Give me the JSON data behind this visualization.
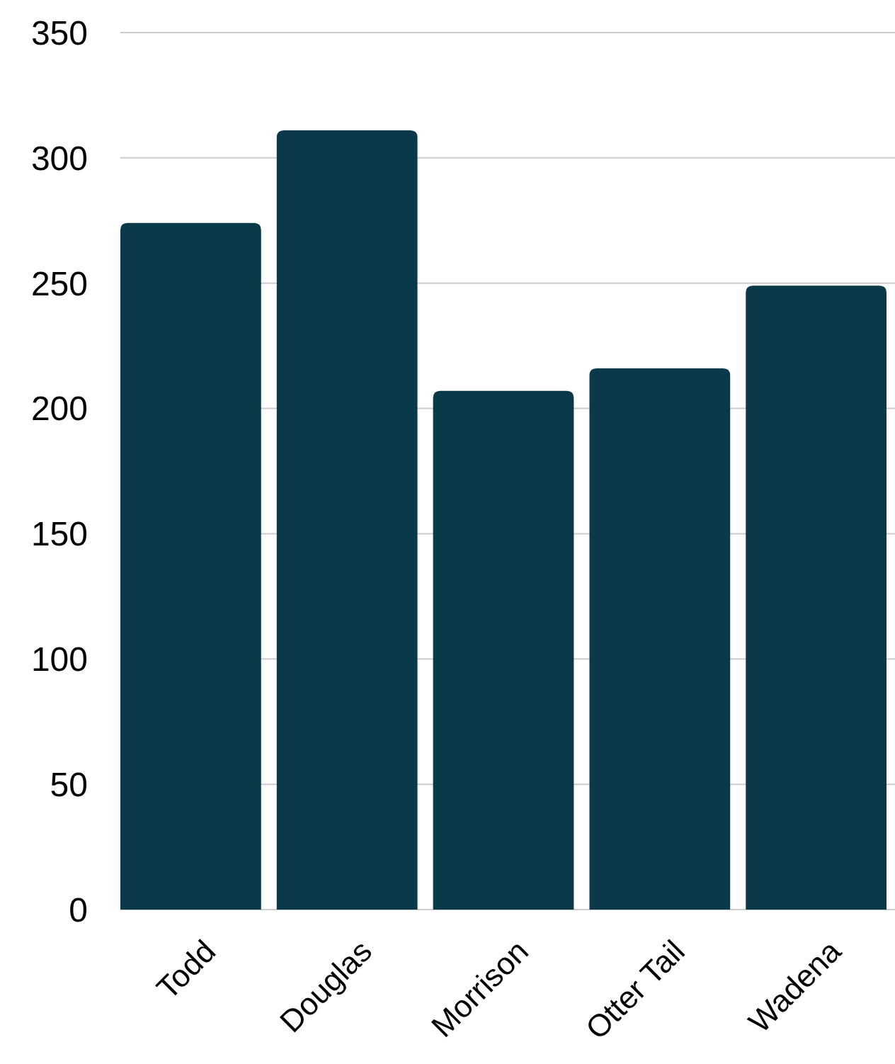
{
  "chart_data": {
    "type": "bar",
    "categories": [
      "Todd",
      "Douglas",
      "Morrison",
      "Otter Tail",
      "Wadena"
    ],
    "values": [
      274,
      311,
      207,
      216,
      249
    ],
    "color": "#0a3a4a",
    "ylim": [
      0,
      350
    ],
    "yticks": [
      0,
      50,
      100,
      150,
      200,
      250,
      300,
      350
    ],
    "grid": "y"
  }
}
